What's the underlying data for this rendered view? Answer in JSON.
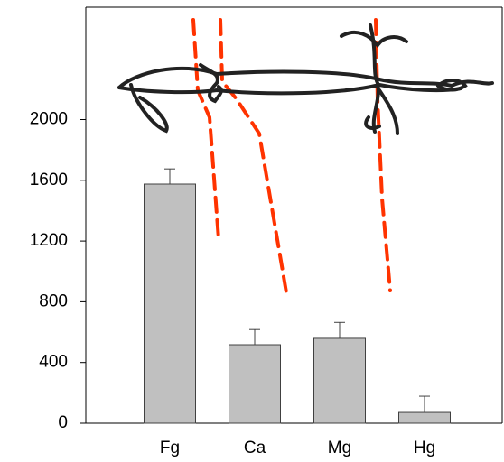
{
  "chart_data": {
    "type": "bar",
    "categories": [
      "Fg",
      "Ca",
      "Mg",
      "Hg"
    ],
    "values": [
      1575,
      517,
      559,
      71
    ],
    "errors": [
      100,
      100,
      105,
      107
    ],
    "color": "#c0c0c0",
    "ylim": [
      0,
      2740
    ],
    "yticks": [
      0,
      400,
      800,
      1200,
      1600,
      2000
    ],
    "grid": false
  }
}
